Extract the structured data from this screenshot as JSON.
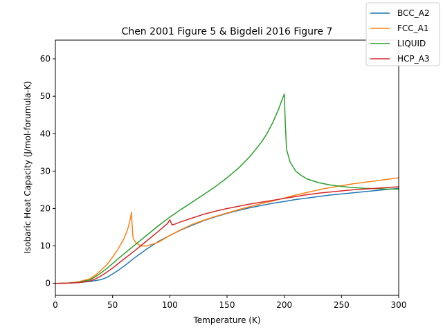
{
  "chart_data": {
    "type": "line",
    "title": "Chen 2001 Figure 5 & Bigdeli 2016 Figure 7",
    "xlabel": "Temperature (K)",
    "ylabel": "Isobaric Heat Capacity (J/mol-forumula-K)",
    "xlim": [
      0,
      300
    ],
    "ylim": [
      -3.2,
      65
    ],
    "xticks": [
      0,
      50,
      100,
      150,
      200,
      250,
      300
    ],
    "yticks": [
      0,
      10,
      20,
      30,
      40,
      50,
      60
    ],
    "xtick_labels": [
      "0",
      "50",
      "100",
      "150",
      "200",
      "250",
      "300"
    ],
    "ytick_labels": [
      "0",
      "10",
      "20",
      "30",
      "40",
      "50",
      "60"
    ],
    "grid": false,
    "legend_position": "top-right",
    "series": [
      {
        "name": "BCC_A2",
        "color": "#1f77b4",
        "points": [
          [
            0,
            0
          ],
          [
            10,
            0.05
          ],
          [
            20,
            0.2
          ],
          [
            30,
            0.5
          ],
          [
            40,
            1.0
          ],
          [
            45,
            1.6
          ],
          [
            50,
            2.5
          ],
          [
            55,
            3.5
          ],
          [
            60,
            4.6
          ],
          [
            70,
            7.0
          ],
          [
            80,
            9.2
          ],
          [
            90,
            11.2
          ],
          [
            100,
            12.8
          ],
          [
            110,
            14.3
          ],
          [
            120,
            15.6
          ],
          [
            130,
            16.8
          ],
          [
            140,
            17.8
          ],
          [
            150,
            18.7
          ],
          [
            160,
            19.5
          ],
          [
            170,
            20.2
          ],
          [
            180,
            20.8
          ],
          [
            190,
            21.4
          ],
          [
            200,
            21.9
          ],
          [
            210,
            22.4
          ],
          [
            220,
            22.8
          ],
          [
            230,
            23.2
          ],
          [
            240,
            23.6
          ],
          [
            250,
            23.9
          ],
          [
            260,
            24.2
          ],
          [
            270,
            24.5
          ],
          [
            280,
            24.8
          ],
          [
            290,
            25.1
          ],
          [
            300,
            25.4
          ]
        ]
      },
      {
        "name": "FCC_A1",
        "color": "#ff7f0e",
        "points": [
          [
            0,
            0
          ],
          [
            10,
            0.05
          ],
          [
            20,
            0.4
          ],
          [
            30,
            1.2
          ],
          [
            35,
            2.2
          ],
          [
            40,
            3.5
          ],
          [
            45,
            5.0
          ],
          [
            50,
            7.0
          ],
          [
            55,
            9.3
          ],
          [
            60,
            12.0
          ],
          [
            63,
            14.3
          ],
          [
            65,
            16.5
          ],
          [
            66,
            18.0
          ],
          [
            66.5,
            19.0
          ],
          [
            67,
            16.0
          ],
          [
            67.5,
            13.5
          ],
          [
            68,
            12.0
          ],
          [
            70,
            11.0
          ],
          [
            72,
            10.5
          ],
          [
            75,
            10.0
          ],
          [
            80,
            10.0
          ],
          [
            90,
            11.0
          ],
          [
            100,
            12.8
          ],
          [
            110,
            14.4
          ],
          [
            120,
            15.8
          ],
          [
            130,
            16.9
          ],
          [
            140,
            17.9
          ],
          [
            150,
            18.8
          ],
          [
            160,
            19.7
          ],
          [
            170,
            20.5
          ],
          [
            180,
            21.3
          ],
          [
            190,
            22.0
          ],
          [
            200,
            22.8
          ],
          [
            210,
            23.6
          ],
          [
            220,
            24.3
          ],
          [
            230,
            25.0
          ],
          [
            240,
            25.6
          ],
          [
            250,
            26.1
          ],
          [
            260,
            26.6
          ],
          [
            270,
            27.0
          ],
          [
            280,
            27.4
          ],
          [
            290,
            27.8
          ],
          [
            300,
            28.2
          ]
        ]
      },
      {
        "name": "LIQUID",
        "color": "#2ca02c",
        "points": [
          [
            0,
            0
          ],
          [
            10,
            0.05
          ],
          [
            20,
            0.3
          ],
          [
            30,
            0.9
          ],
          [
            35,
            1.8
          ],
          [
            40,
            2.8
          ],
          [
            45,
            4.0
          ],
          [
            50,
            5.3
          ],
          [
            55,
            6.6
          ],
          [
            60,
            7.9
          ],
          [
            70,
            10.4
          ],
          [
            80,
            12.9
          ],
          [
            90,
            15.4
          ],
          [
            100,
            17.7
          ],
          [
            110,
            19.8
          ],
          [
            120,
            21.8
          ],
          [
            130,
            23.8
          ],
          [
            140,
            25.9
          ],
          [
            150,
            28.2
          ],
          [
            160,
            30.8
          ],
          [
            170,
            33.9
          ],
          [
            180,
            37.7
          ],
          [
            185,
            40.1
          ],
          [
            190,
            43.0
          ],
          [
            195,
            46.5
          ],
          [
            198,
            49.0
          ],
          [
            200,
            50.6
          ],
          [
            201,
            42.0
          ],
          [
            202,
            35.8
          ],
          [
            205,
            32.5
          ],
          [
            210,
            30.0
          ],
          [
            215,
            28.8
          ],
          [
            220,
            27.9
          ],
          [
            230,
            26.9
          ],
          [
            240,
            26.3
          ],
          [
            250,
            25.9
          ],
          [
            260,
            25.6
          ],
          [
            270,
            25.4
          ],
          [
            280,
            25.3
          ],
          [
            290,
            25.2
          ],
          [
            300,
            25.2
          ]
        ]
      },
      {
        "name": "HCP_A3",
        "color": "#d62728",
        "points": [
          [
            0,
            0
          ],
          [
            10,
            0.05
          ],
          [
            20,
            0.2
          ],
          [
            30,
            0.6
          ],
          [
            35,
            1.2
          ],
          [
            40,
            2.0
          ],
          [
            45,
            3.0
          ],
          [
            50,
            4.1
          ],
          [
            55,
            5.3
          ],
          [
            60,
            6.5
          ],
          [
            70,
            8.9
          ],
          [
            80,
            11.4
          ],
          [
            90,
            13.9
          ],
          [
            98,
            16.0
          ],
          [
            100,
            17.0
          ],
          [
            102,
            15.6
          ],
          [
            105,
            15.9
          ],
          [
            110,
            16.5
          ],
          [
            120,
            17.5
          ],
          [
            130,
            18.5
          ],
          [
            140,
            19.3
          ],
          [
            150,
            20.0
          ],
          [
            160,
            20.6
          ],
          [
            170,
            21.2
          ],
          [
            180,
            21.7
          ],
          [
            190,
            22.2
          ],
          [
            200,
            22.7
          ],
          [
            210,
            23.2
          ],
          [
            220,
            23.7
          ],
          [
            230,
            24.1
          ],
          [
            240,
            24.4
          ],
          [
            250,
            24.7
          ],
          [
            260,
            25.0
          ],
          [
            270,
            25.2
          ],
          [
            280,
            25.4
          ],
          [
            290,
            25.6
          ],
          [
            300,
            25.8
          ]
        ]
      }
    ]
  }
}
